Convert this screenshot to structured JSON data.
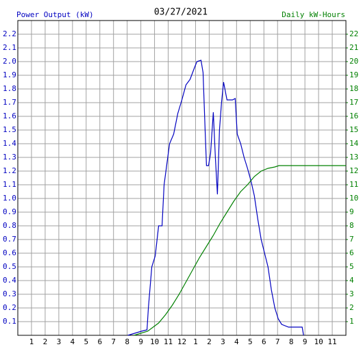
{
  "chart_data": {
    "type": "line",
    "title": "03/27/2021",
    "ylabel": "Power Output (kW)",
    "y2label": "Daily kW-Hours",
    "xlim": [
      0,
      24
    ],
    "xticks": [
      1,
      2,
      3,
      4,
      5,
      6,
      7,
      8,
      9,
      10,
      11,
      12,
      {
        "value": 13,
        "label": "1"
      },
      {
        "value": 14,
        "label": "2"
      },
      {
        "value": 15,
        "label": "3"
      },
      {
        "value": 16,
        "label": "4"
      },
      {
        "value": 17,
        "label": "5"
      },
      {
        "value": 18,
        "label": "6"
      },
      {
        "value": 19,
        "label": "7"
      },
      {
        "value": 20,
        "label": "8"
      },
      {
        "value": 21,
        "label": "9"
      },
      {
        "value": 22,
        "label": "10"
      },
      {
        "value": 23,
        "label": "11"
      }
    ],
    "ylim": [
      0,
      2.3
    ],
    "yticks": [
      0.1,
      0.2,
      0.3,
      0.4,
      0.5,
      0.6,
      0.7,
      0.8,
      0.9,
      {
        "value": 1,
        "label": "1.0"
      },
      1.1,
      1.2,
      1.3,
      1.4,
      1.5,
      1.6,
      1.7,
      1.8,
      1.9,
      {
        "value": 2,
        "label": "2.0"
      },
      2.1,
      2.2
    ],
    "y2lim": [
      0,
      23
    ],
    "y2ticks": [
      1,
      2,
      3,
      4,
      5,
      6,
      7,
      8,
      9,
      10,
      11,
      12,
      13,
      14,
      15,
      16,
      17,
      18,
      19,
      20,
      21,
      22
    ],
    "grid": true,
    "ycolor": "#0000c0",
    "y2color": "#008000",
    "series": [
      {
        "name": "Power Output (kW)",
        "color": "#0000c0",
        "x": [
          8.05,
          9.05,
          9.45,
          9.55,
          9.8,
          10.05,
          10.3,
          10.55,
          10.7,
          10.9,
          11.1,
          11.4,
          11.7,
          12.0,
          12.3,
          12.6,
          12.9,
          13.1,
          13.4,
          13.55,
          13.7,
          13.8,
          13.95,
          14.1,
          14.3,
          14.45,
          14.6,
          14.75,
          14.9,
          15.05,
          15.3,
          15.7,
          15.9,
          16.05,
          16.3,
          16.55,
          16.8,
          17.05,
          17.3,
          17.55,
          17.8,
          18.05,
          18.3,
          18.55,
          18.8,
          19.05,
          19.3,
          19.8,
          20.8,
          20.9
        ],
        "values": [
          0,
          0.03,
          0.04,
          0.2,
          0.5,
          0.58,
          0.8,
          0.8,
          1.1,
          1.25,
          1.4,
          1.47,
          1.62,
          1.72,
          1.83,
          1.87,
          1.95,
          2.0,
          2.01,
          1.92,
          1.5,
          1.24,
          1.24,
          1.33,
          1.63,
          1.3,
          1.03,
          1.5,
          1.7,
          1.85,
          1.72,
          1.72,
          1.73,
          1.47,
          1.4,
          1.3,
          1.22,
          1.13,
          1.02,
          0.85,
          0.7,
          0.6,
          0.5,
          0.33,
          0.2,
          0.12,
          0.08,
          0.06,
          0.06,
          0
        ]
      },
      {
        "name": "Daily kW-Hours",
        "color": "#008000",
        "axis": "y2",
        "x": [
          8.5,
          9.5,
          10.3,
          10.8,
          11.3,
          11.8,
          12.3,
          12.8,
          13.3,
          13.8,
          14.3,
          14.8,
          15.3,
          15.8,
          16.3,
          16.8,
          17.3,
          17.8,
          18.3,
          18.8,
          19.1,
          24
        ],
        "values": [
          0,
          0.3,
          0.9,
          1.5,
          2.2,
          3.0,
          3.9,
          4.8,
          5.7,
          6.5,
          7.3,
          8.2,
          9.0,
          9.8,
          10.5,
          11.0,
          11.6,
          12.0,
          12.2,
          12.3,
          12.4,
          12.4
        ]
      }
    ]
  }
}
